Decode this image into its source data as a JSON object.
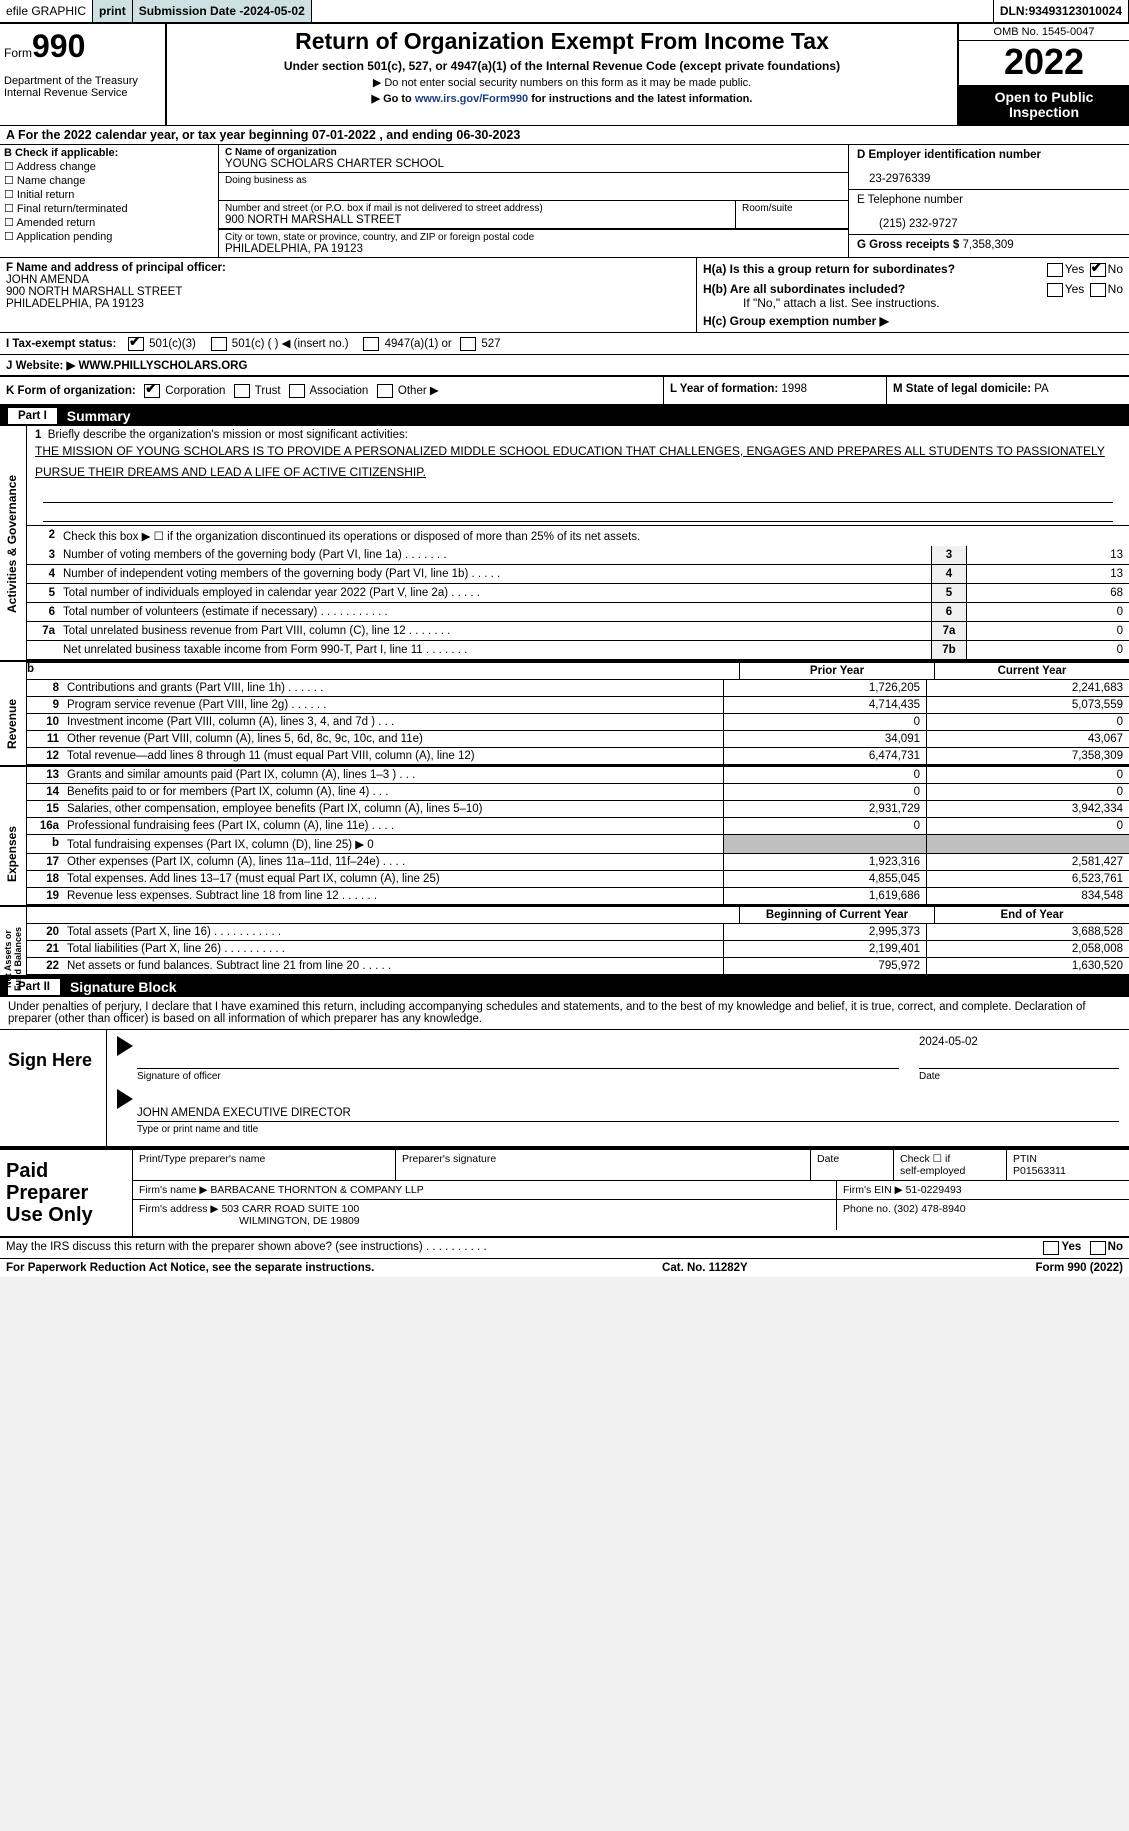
{
  "topbar": {
    "efile": "efile GRAPHIC",
    "print": "print",
    "subdate_label": "Submission Date - ",
    "subdate": "2024-05-02",
    "dln_label": "DLN: ",
    "dln": "93493123010024"
  },
  "hdr": {
    "form_prefix": "Form",
    "form_num": "990",
    "dept": "Department of the Treasury\nInternal Revenue Service",
    "title": "Return of Organization Exempt From Income Tax",
    "sub": "Under section 501(c), 527, or 4947(a)(1) of the Internal Revenue Code (except private foundations)",
    "sub2": "▶ Do not enter social security numbers on this form as it may be made public.",
    "sub3a": "▶ Go to ",
    "sub3link": "www.irs.gov/Form990",
    "sub3b": " for instructions and the latest information.",
    "omb": "OMB No. 1545-0047",
    "year": "2022",
    "open": "Open to Public Inspection"
  },
  "A": {
    "text": "A For the 2022 calendar year, or tax year beginning 07-01-2022    , and ending 06-30-2023"
  },
  "B": {
    "hdr": "B Check if applicable:",
    "items": [
      "Address change",
      "Name change",
      "Initial return",
      "Final return/terminated",
      "Amended return",
      "Application pending"
    ]
  },
  "C": {
    "name_lbl": "C Name of organization",
    "name": "YOUNG SCHOLARS CHARTER SCHOOL",
    "dba_lbl": "Doing business as",
    "street_lbl": "Number and street (or P.O. box if mail is not delivered to street address)",
    "street": "900 NORTH MARSHALL STREET",
    "room_lbl": "Room/suite",
    "city_lbl": "City or town, state or province, country, and ZIP or foreign postal code",
    "city": "PHILADELPHIA, PA  19123"
  },
  "DEG": {
    "d_lbl": "D Employer identification number",
    "d": "23-2976339",
    "e_lbl": "E Telephone number",
    "e": "(215) 232-9727",
    "g_lbl": "G Gross receipts $ ",
    "g": "7,358,309"
  },
  "F": {
    "lbl": "F Name and address of principal officer:",
    "name": "JOHN AMENDA",
    "addr1": "900 NORTH MARSHALL STREET",
    "addr2": "PHILADELPHIA, PA  19123"
  },
  "H": {
    "a": "H(a)  Is this a group return for subordinates?",
    "b": "H(b)  Are all subordinates included?",
    "bnote": "If \"No,\" attach a list. See instructions.",
    "c": "H(c)  Group exemption number ▶"
  },
  "I": {
    "lbl": "I   Tax-exempt status:",
    "o1": "501(c)(3)",
    "o2": "501(c) (   ) ◀ (insert no.)",
    "o3": "4947(a)(1) or",
    "o4": "527"
  },
  "J": {
    "lbl": "J   Website: ▶  ",
    "val": "WWW.PHILLYSCHOLARS.ORG"
  },
  "K": {
    "lbl": "K Form of organization:",
    "opts": [
      "Corporation",
      "Trust",
      "Association",
      "Other ▶"
    ]
  },
  "L": {
    "lbl": "L Year of formation: ",
    "val": "1998"
  },
  "M": {
    "lbl": "M State of legal domicile: ",
    "val": "PA"
  },
  "parts": {
    "p1": "Part I",
    "p1t": "Summary",
    "p2": "Part II",
    "p2t": "Signature Block"
  },
  "sidetabs": {
    "ag": "Activities & Governance",
    "rev": "Revenue",
    "exp": "Expenses",
    "na": "Net Assets or\nFund Balances"
  },
  "mission": {
    "lbl": "Briefly describe the organization's mission or most significant activities:",
    "txt": "THE MISSION OF YOUNG SCHOLARS IS TO PROVIDE A PERSONALIZED MIDDLE SCHOOL EDUCATION THAT CHALLENGES, ENGAGES AND PREPARES ALL STUDENTS TO PASSIONATELY PURSUE THEIR DREAMS AND LEAD A LIFE OF ACTIVE CITIZENSHIP."
  },
  "line2": "Check this box ▶ ☐  if the organization discontinued its operations or disposed of more than 25% of its net assets.",
  "govlines": [
    {
      "n": "3",
      "d": "Number of voting members of the governing body (Part VI, line 1a)   .    .    .    .    .    .    .",
      "b": "3",
      "v": "13"
    },
    {
      "n": "4",
      "d": "Number of independent voting members of the governing body (Part VI, line 1b)   .    .    .    .    .",
      "b": "4",
      "v": "13"
    },
    {
      "n": "5",
      "d": "Total number of individuals employed in calendar year 2022 (Part V, line 2a)   .    .    .    .    .",
      "b": "5",
      "v": "68"
    },
    {
      "n": "6",
      "d": "Total number of volunteers (estimate if necessary)    .    .    .    .    .    .    .    .    .    .    .",
      "b": "6",
      "v": "0"
    },
    {
      "n": "7a",
      "d": "Total unrelated business revenue from Part VIII, column (C), line 12    .    .    .    .    .    .    .",
      "b": "7a",
      "v": "0"
    },
    {
      "n": "",
      "d": "Net unrelated business taxable income from Form 990-T, Part I, line 11   .    .    .    .    .    .    .",
      "b": "7b",
      "v": "0"
    }
  ],
  "finhdr": {
    "py": "Prior Year",
    "cy": "Current Year"
  },
  "rev": [
    {
      "n": "8",
      "d": "Contributions and grants (Part VIII, line 1h)   .    .    .    .    .    .",
      "pv": "1,726,205",
      "cv": "2,241,683"
    },
    {
      "n": "9",
      "d": "Program service revenue (Part VIII, line 2g)   .    .    .    .    .    .",
      "pv": "4,714,435",
      "cv": "5,073,559"
    },
    {
      "n": "10",
      "d": "Investment income (Part VIII, column (A), lines 3, 4, and 7d )    .    .    .",
      "pv": "0",
      "cv": "0"
    },
    {
      "n": "11",
      "d": "Other revenue (Part VIII, column (A), lines 5, 6d, 8c, 9c, 10c, and 11e)",
      "pv": "34,091",
      "cv": "43,067"
    },
    {
      "n": "12",
      "d": "Total revenue—add lines 8 through 11 (must equal Part VIII, column (A), line 12)",
      "pv": "6,474,731",
      "cv": "7,358,309"
    }
  ],
  "exp": [
    {
      "n": "13",
      "d": "Grants and similar amounts paid (Part IX, column (A), lines 1–3 )   .    .    .",
      "pv": "0",
      "cv": "0"
    },
    {
      "n": "14",
      "d": "Benefits paid to or for members (Part IX, column (A), line 4)   .    .    .",
      "pv": "0",
      "cv": "0"
    },
    {
      "n": "15",
      "d": "Salaries, other compensation, employee benefits (Part IX, column (A), lines 5–10)",
      "pv": "2,931,729",
      "cv": "3,942,334"
    },
    {
      "n": "16a",
      "d": "Professional fundraising fees (Part IX, column (A), line 11e)    .    .    .    .",
      "pv": "0",
      "cv": "0"
    },
    {
      "n": "b",
      "d": "Total fundraising expenses (Part IX, column (D), line 25) ▶ 0",
      "pv": "SHADE",
      "cv": "SHADE"
    },
    {
      "n": "17",
      "d": "Other expenses (Part IX, column (A), lines 11a–11d, 11f–24e)   .    .    .    .",
      "pv": "1,923,316",
      "cv": "2,581,427"
    },
    {
      "n": "18",
      "d": "Total expenses. Add lines 13–17 (must equal Part IX, column (A), line 25)",
      "pv": "4,855,045",
      "cv": "6,523,761"
    },
    {
      "n": "19",
      "d": "Revenue less expenses. Subtract line 18 from line 12   .    .    .    .    .    .",
      "pv": "1,619,686",
      "cv": "834,548"
    }
  ],
  "nahdr": {
    "py": "Beginning of Current Year",
    "cy": "End of Year"
  },
  "na": [
    {
      "n": "20",
      "d": "Total assets (Part X, line 16)   .    .    .    .    .    .    .    .    .    .    .",
      "pv": "2,995,373",
      "cv": "3,688,528"
    },
    {
      "n": "21",
      "d": "Total liabilities (Part X, line 26)   .    .    .    .    .    .    .    .    .    .",
      "pv": "2,199,401",
      "cv": "2,058,008"
    },
    {
      "n": "22",
      "d": "Net assets or fund balances. Subtract line 21 from line 20   .    .    .    .    .",
      "pv": "795,972",
      "cv": "1,630,520"
    }
  ],
  "sig": {
    "text": "Under penalties of perjury, I declare that I have examined this return, including accompanying schedules and statements, and to the best of my knowledge and belief, it is true, correct, and complete. Declaration of preparer (other than officer) is based on all information of which preparer has any knowledge.",
    "signhere": "Sign Here",
    "sigoff": "Signature of officer",
    "date": "2024-05-02",
    "datel": "Date",
    "name": "JOHN AMENDA  EXECUTIVE DIRECTOR",
    "namel": "Type or print name and title"
  },
  "paid": {
    "lbl": "Paid Preparer Use Only",
    "h1": "Print/Type preparer's name",
    "h2": "Preparer's signature",
    "h3": "Date",
    "h4a": "Check ☐ if",
    "h4b": "self-employed",
    "h5l": "PTIN",
    "h5": "P01563311",
    "firmname_l": "Firm's name     ▶ ",
    "firmname": "BARBACANE THORNTON & COMPANY LLP",
    "firmaddr_l": "Firm's address ▶ ",
    "firmaddr1": "503 CARR ROAD SUITE 100",
    "firmaddr2": "WILMINGTON, DE  19809",
    "ein_l": "Firm's EIN ▶ ",
    "ein": "51-0229493",
    "phone_l": "Phone no. ",
    "phone": "(302) 478-8940"
  },
  "footer": {
    "q": "May the IRS discuss this return with the preparer shown above? (see instructions)    .    .    .    .    .    .    .    .    .    .",
    "yes": "Yes",
    "no": "No",
    "pra": "For Paperwork Reduction Act Notice, see the separate instructions.",
    "cat": "Cat. No. 11282Y",
    "form": "Form 990 (2022)"
  }
}
